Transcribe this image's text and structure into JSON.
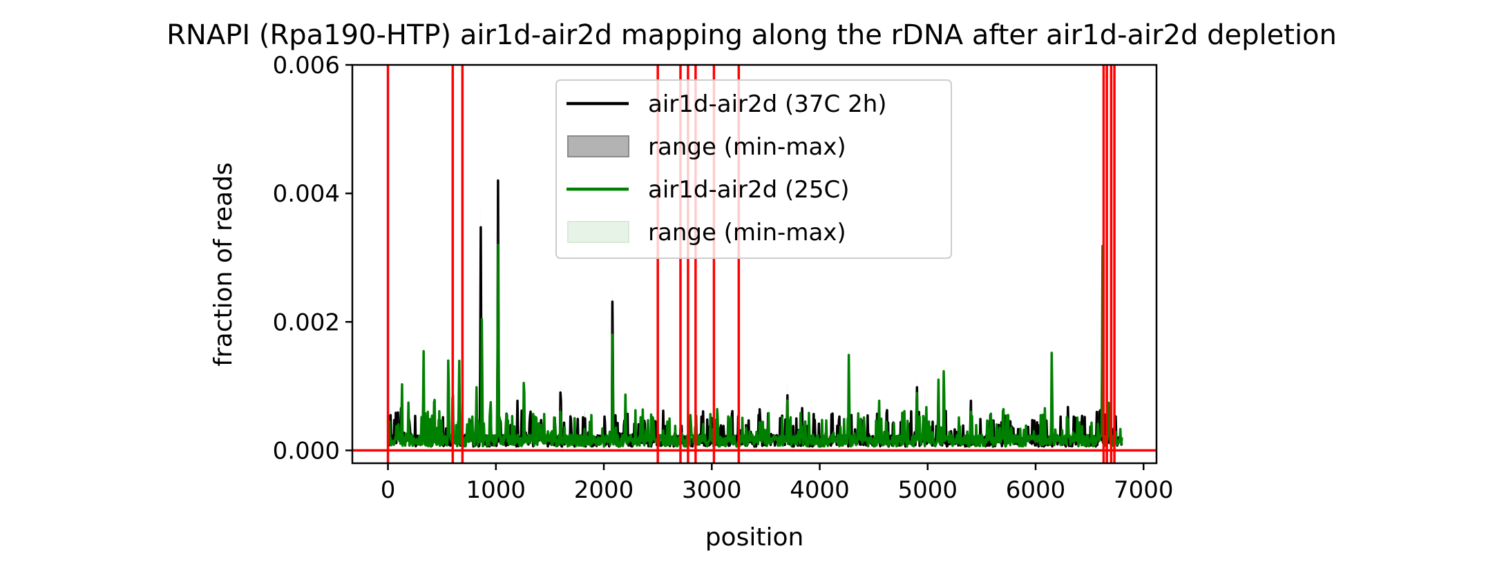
{
  "chart_data": {
    "type": "line",
    "title": "RNAPI (Rpa190-HTP) air1d-air2d mapping along the rDNA after air1d-air2d depletion",
    "xlabel": "position",
    "ylabel": "fraction of reads",
    "xlim": [
      -330,
      7120
    ],
    "ylim": [
      -0.0002,
      0.006
    ],
    "xticks": [
      0,
      1000,
      2000,
      3000,
      4000,
      5000,
      6000,
      7000
    ],
    "xtick_labels": [
      "0",
      "1000",
      "2000",
      "3000",
      "4000",
      "5000",
      "6000",
      "7000"
    ],
    "yticks": [
      0.0,
      0.002,
      0.004,
      0.006
    ],
    "ytick_labels": [
      "0.000",
      "0.002",
      "0.004",
      "0.006"
    ],
    "grid": false,
    "legend": {
      "placement": "top-center",
      "entries": [
        {
          "label": "air1d-air2d (37C 2h)",
          "kind": "line",
          "color": "#000000"
        },
        {
          "label": "range (min-max)",
          "kind": "patch",
          "color": "#b3b3b3"
        },
        {
          "label": "air1d-air2d (25C)",
          "kind": "line",
          "color": "#008000"
        },
        {
          "label": "range (min-max)",
          "kind": "patch",
          "color": "#e8f3e8"
        }
      ]
    },
    "vertical_lines": {
      "color": "#ff0000",
      "x": [
        0,
        600,
        690,
        2500,
        2710,
        2780,
        2850,
        3020,
        3250,
        6630,
        6660,
        6700,
        6730
      ]
    },
    "horizontal_lines": {
      "color": "#ff0000",
      "y": [
        0.0
      ]
    },
    "series": [
      {
        "name": "air1d-air2d (37C 2h)",
        "color": "#000000",
        "peaks": [
          [
            120,
            0.0008
          ],
          [
            190,
            0.0005
          ],
          [
            330,
            0.0011
          ],
          [
            560,
            0.0013
          ],
          [
            600,
            0.0008
          ],
          [
            660,
            0.0011
          ],
          [
            780,
            0.0005
          ],
          [
            820,
            0.0009
          ],
          [
            860,
            0.0036
          ],
          [
            950,
            0.0009
          ],
          [
            1020,
            0.0042
          ],
          [
            1100,
            0.0008
          ],
          [
            1200,
            0.0008
          ],
          [
            1260,
            0.0009
          ],
          [
            1420,
            0.0006
          ],
          [
            1600,
            0.0012
          ],
          [
            1820,
            0.0006
          ],
          [
            2080,
            0.0027
          ],
          [
            2200,
            0.0006
          ],
          [
            2550,
            0.0003
          ],
          [
            3010,
            0.0005
          ],
          [
            3450,
            0.0006
          ],
          [
            3650,
            0.0007
          ],
          [
            3700,
            0.001
          ],
          [
            4180,
            0.0007
          ],
          [
            4550,
            0.0006
          ],
          [
            4900,
            0.0011
          ],
          [
            5100,
            0.0009
          ],
          [
            5400,
            0.0009
          ],
          [
            5700,
            0.0008
          ],
          [
            6100,
            0.0005
          ],
          [
            6300,
            0.0007
          ],
          [
            6600,
            0.0007
          ],
          [
            6650,
            0.0006
          ]
        ],
        "baseline": 0.00015
      },
      {
        "name": "air1d-air2d (25C)",
        "color": "#008000",
        "peaks": [
          [
            130,
            0.0012
          ],
          [
            190,
            0.0008
          ],
          [
            330,
            0.0016
          ],
          [
            430,
            0.0011
          ],
          [
            560,
            0.0017
          ],
          [
            600,
            0.0012
          ],
          [
            660,
            0.0015
          ],
          [
            780,
            0.0007
          ],
          [
            820,
            0.0011
          ],
          [
            870,
            0.0022
          ],
          [
            950,
            0.001
          ],
          [
            1020,
            0.0032
          ],
          [
            1100,
            0.0007
          ],
          [
            1260,
            0.0014
          ],
          [
            1420,
            0.0005
          ],
          [
            1600,
            0.0008
          ],
          [
            1820,
            0.0004
          ],
          [
            2080,
            0.0021
          ],
          [
            2200,
            0.0009
          ],
          [
            3010,
            0.0004
          ],
          [
            3450,
            0.0004
          ],
          [
            3700,
            0.0009
          ],
          [
            4270,
            0.0016
          ],
          [
            4550,
            0.0009
          ],
          [
            4900,
            0.001
          ],
          [
            5100,
            0.0011
          ],
          [
            5150,
            0.0015
          ],
          [
            5400,
            0.0007
          ],
          [
            5700,
            0.0009
          ],
          [
            6150,
            0.0017
          ],
          [
            6300,
            0.0005
          ],
          [
            6620,
            0.0033
          ],
          [
            6680,
            0.0009
          ]
        ],
        "baseline": 0.00015
      }
    ]
  }
}
